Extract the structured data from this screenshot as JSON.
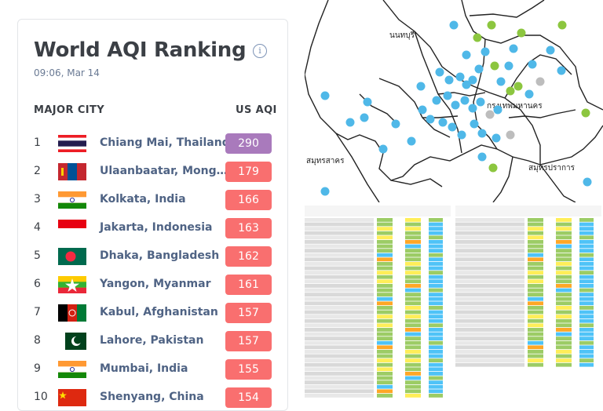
{
  "ranking": {
    "title": "World AQI Ranking",
    "timestamp": "09:06, Mar 14",
    "info_icon": "info-icon",
    "header_city": "MAJOR CITY",
    "header_aqi": "US AQI",
    "rows": [
      {
        "rank": "1",
        "city": "Chiang Mai, Thailand",
        "aqi": "290",
        "color": "#a97abc",
        "flag": "thailand"
      },
      {
        "rank": "2",
        "city": "Ulaanbaatar, Mong…",
        "aqi": "179",
        "color": "#f96f6f",
        "flag": "mongolia"
      },
      {
        "rank": "3",
        "city": "Kolkata, India",
        "aqi": "166",
        "color": "#f96f6f",
        "flag": "india"
      },
      {
        "rank": "4",
        "city": "Jakarta, Indonesia",
        "aqi": "163",
        "color": "#f96f6f",
        "flag": "indonesia"
      },
      {
        "rank": "5",
        "city": "Dhaka, Bangladesh",
        "aqi": "162",
        "color": "#f96f6f",
        "flag": "bangladesh"
      },
      {
        "rank": "6",
        "city": "Yangon, Myanmar",
        "aqi": "161",
        "color": "#f96f6f",
        "flag": "myanmar"
      },
      {
        "rank": "7",
        "city": "Kabul, Afghanistan",
        "aqi": "157",
        "color": "#f96f6f",
        "flag": "afghanistan"
      },
      {
        "rank": "8",
        "city": "Lahore, Pakistan",
        "aqi": "157",
        "color": "#f96f6f",
        "flag": "pakistan"
      },
      {
        "rank": "9",
        "city": "Mumbai, India",
        "aqi": "155",
        "color": "#f96f6f",
        "flag": "india"
      },
      {
        "rank": "10",
        "city": "Shenyang, China",
        "aqi": "154",
        "color": "#f96f6f",
        "flag": "china"
      }
    ]
  },
  "map": {
    "labels": {
      "nonthaburi": "นนทบุรี",
      "bangkok": "กรุงเทพมหานคร",
      "samut_sakhon": "สมุทรสาคร",
      "samut_prakan": "สมุทรปราการ"
    },
    "marker_colors": {
      "blue": "#4fb8e8",
      "green": "#8cc63f",
      "gray": "#bdbdbd"
    }
  },
  "tables": {
    "colors": {
      "green": "#9ccc65",
      "yellow": "#ffee58",
      "orange": "#ffa726",
      "blue": "#4fc3f7",
      "gray": "#bdbdbd"
    }
  }
}
